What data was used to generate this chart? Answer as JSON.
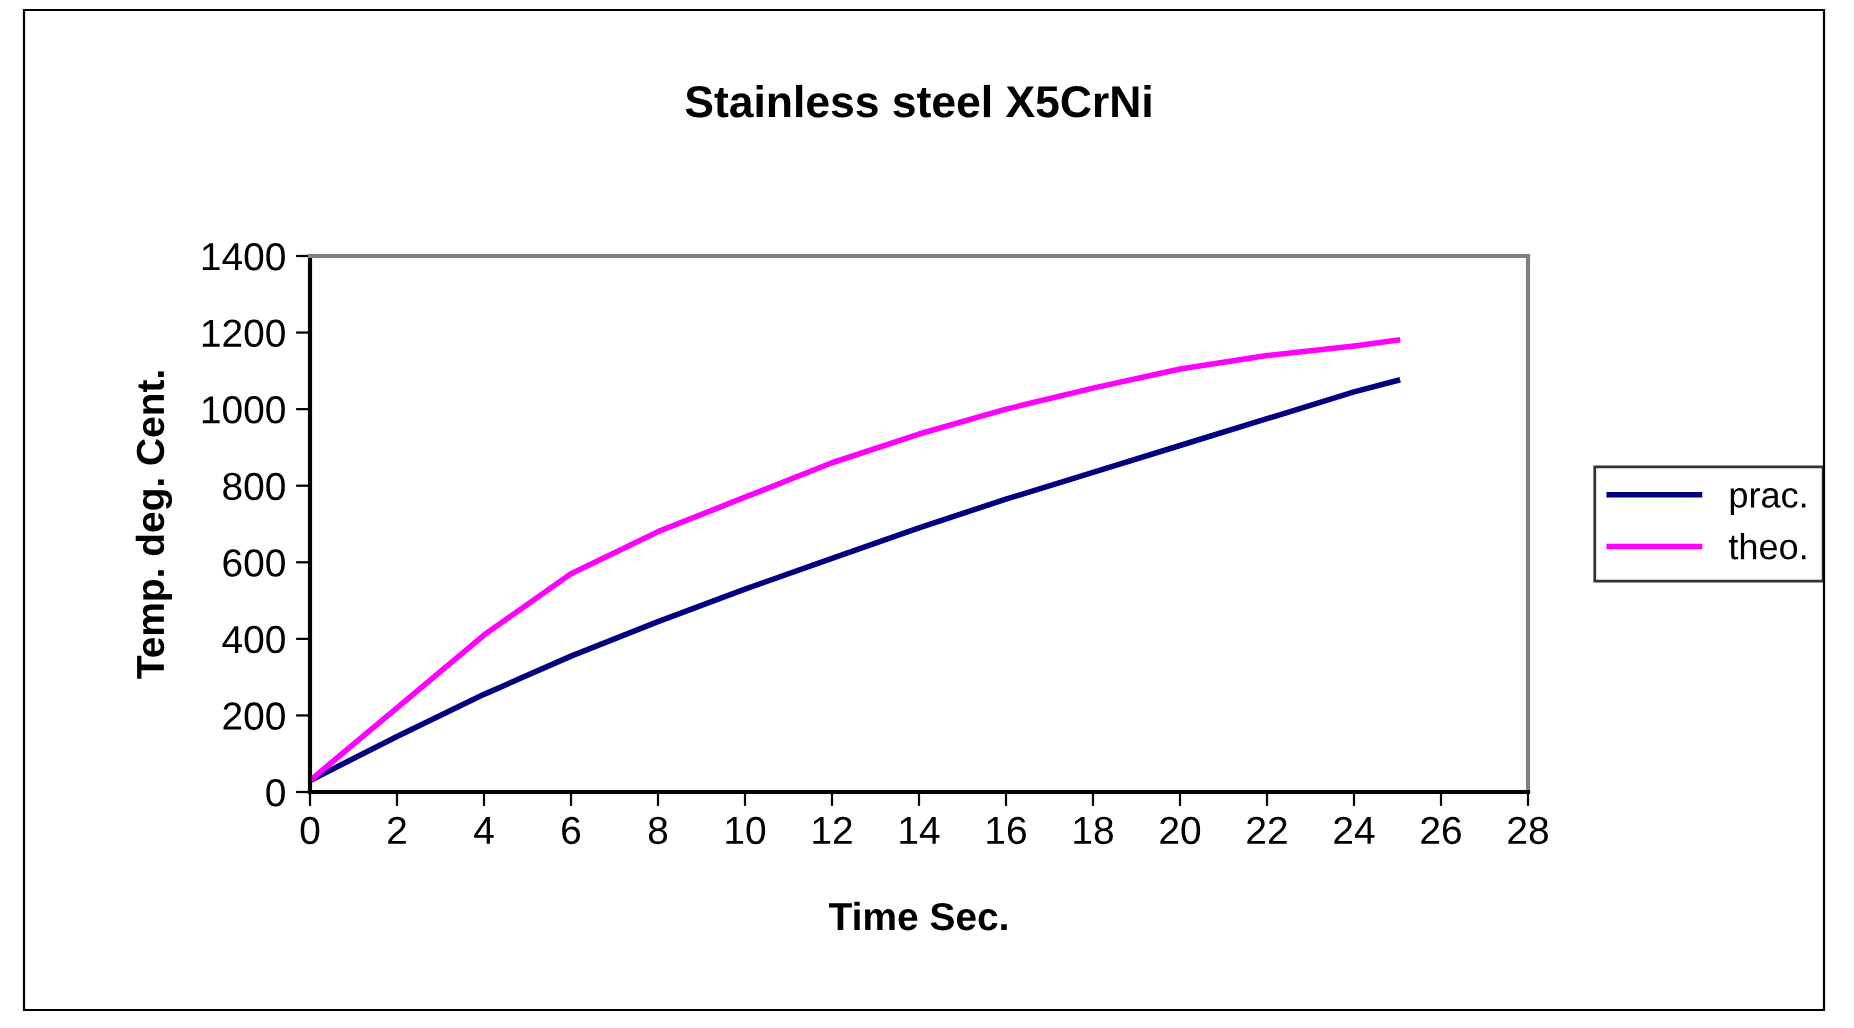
{
  "chart_data": {
    "type": "line",
    "title": "Stainless steel X5CrNi",
    "xlabel": "Time Sec.",
    "ylabel": "Temp. deg. Cent.",
    "series": [
      {
        "name": "prac.",
        "color": "#000080",
        "x": [
          0,
          2,
          4,
          6,
          8,
          10,
          12,
          14,
          16,
          18,
          20,
          22,
          24,
          25
        ],
        "values": [
          30,
          145,
          255,
          355,
          445,
          530,
          610,
          690,
          765,
          835,
          905,
          975,
          1045,
          1075
        ]
      },
      {
        "name": "theo.",
        "color": "#ff00ff",
        "x": [
          0,
          2,
          4,
          6,
          8,
          10,
          12,
          14,
          16,
          18,
          20,
          22,
          24,
          25
        ],
        "values": [
          30,
          220,
          410,
          570,
          680,
          770,
          860,
          935,
          1000,
          1055,
          1105,
          1140,
          1165,
          1180
        ]
      }
    ],
    "xlim": [
      0,
      28
    ],
    "xticks": [
      0,
      2,
      4,
      6,
      8,
      10,
      12,
      14,
      16,
      18,
      20,
      22,
      24,
      26,
      28
    ],
    "ylim": [
      0,
      1400
    ],
    "yticks": [
      0,
      200,
      400,
      600,
      800,
      1000,
      1200,
      1400
    ],
    "grid": false,
    "legend": "right",
    "marker": "none",
    "line_style": "solid"
  }
}
